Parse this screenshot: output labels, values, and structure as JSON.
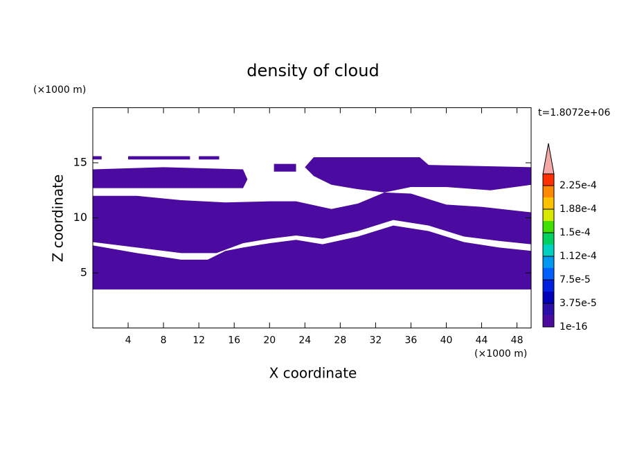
{
  "chart_data": {
    "type": "contour",
    "title": "density of cloud",
    "xlabel": "X coordinate",
    "ylabel": "Z coordinate",
    "x_unit": "(×1000 m)",
    "y_unit": "(×1000 m)",
    "annotation": "t=1.8072e+06",
    "xlim": [
      0,
      49.6
    ],
    "ylim": [
      0,
      20
    ],
    "xticks": [
      4,
      8,
      12,
      16,
      20,
      24,
      28,
      32,
      36,
      40,
      44,
      48
    ],
    "yticks": [
      5,
      10,
      15
    ],
    "color": "#4b0aa0",
    "regions": [
      {
        "x": [
          0,
          49.6,
          49.6,
          46,
          42,
          38,
          34,
          30,
          26,
          23,
          20,
          17,
          15,
          13,
          10,
          5,
          0
        ],
        "z": [
          3.5,
          3.5,
          7,
          7.3,
          7.8,
          8.8,
          9.3,
          8.3,
          7.6,
          8,
          7.7,
          7.3,
          7,
          6.2,
          6.2,
          6.8,
          7.5
        ]
      },
      {
        "x": [
          0,
          5,
          10,
          14,
          17,
          20,
          23,
          26,
          30,
          34,
          38,
          42,
          46,
          49.6,
          49.6,
          44,
          40,
          36,
          33,
          30,
          27,
          23,
          20,
          15,
          10,
          5,
          0
        ],
        "z": [
          7.8,
          7.3,
          6.8,
          6.8,
          7.7,
          8.1,
          8.4,
          8.1,
          8.8,
          9.8,
          9.3,
          8.3,
          7.9,
          7.6,
          10.5,
          11,
          11.2,
          12.2,
          12.3,
          11.3,
          10.8,
          11.5,
          11.5,
          11.4,
          11.6,
          12,
          12
        ]
      },
      {
        "x": [
          0,
          17,
          17.5,
          17,
          8,
          0
        ],
        "z": [
          12.7,
          12.7,
          13.5,
          14.4,
          14.6,
          14.4
        ]
      },
      {
        "x": [
          24,
          25,
          37,
          38,
          49.6,
          49.6,
          45,
          40,
          36,
          33,
          30,
          27,
          25
        ],
        "z": [
          14.6,
          15.5,
          15.5,
          14.8,
          14.6,
          13,
          12.5,
          12.8,
          12.8,
          12.3,
          12.6,
          13,
          13.8
        ]
      },
      {
        "x": [
          0,
          1,
          1,
          0
        ],
        "z": [
          15.3,
          15.3,
          15.6,
          15.6
        ]
      },
      {
        "x": [
          4,
          11,
          11,
          4
        ],
        "z": [
          15.3,
          15.3,
          15.6,
          15.6
        ]
      },
      {
        "x": [
          12,
          14.3,
          14.3,
          12
        ],
        "z": [
          15.3,
          15.3,
          15.6,
          15.6
        ]
      },
      {
        "x": [
          20.5,
          23,
          23,
          20.5
        ],
        "z": [
          14.2,
          14.2,
          14.9,
          14.9
        ]
      }
    ],
    "colorbar": {
      "clim": [
        0,
        0.00024375
      ],
      "ticks": [
        {
          "value": 1e-16,
          "label": "1e-16"
        },
        {
          "value": 3.75e-05,
          "label": "3.75e-5"
        },
        {
          "value": 7.5e-05,
          "label": "7.5e-5"
        },
        {
          "value": 0.0001125,
          "label": "1.12e-4"
        },
        {
          "value": 0.00015,
          "label": "1.5e-4"
        },
        {
          "value": 0.0001875,
          "label": "1.88e-4"
        },
        {
          "value": 0.000225,
          "label": "2.25e-4"
        }
      ],
      "colors": [
        "#4b0aa0",
        "#2a10a8",
        "#0000b8",
        "#0020e0",
        "#0060ff",
        "#0098f0",
        "#00d0c0",
        "#00d060",
        "#40e000",
        "#d8e800",
        "#ffc000",
        "#ff8800",
        "#ff3000"
      ],
      "extend_color": "#f4a8a8"
    }
  }
}
